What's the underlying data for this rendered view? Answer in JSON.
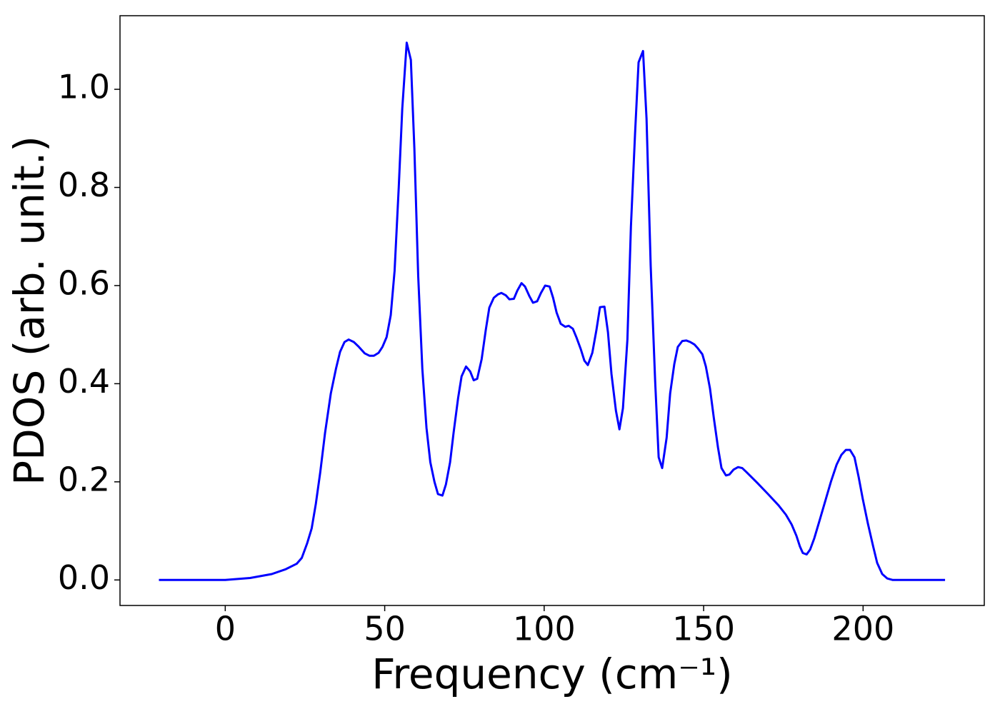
{
  "chart_data": {
    "type": "line",
    "xlabel": "Frequency (cm⁻¹)",
    "ylabel": "PDOS (arb. unit.)",
    "x": [
      -20.8,
      0,
      7.8,
      14.6,
      19.0,
      22.4,
      24.0,
      25.7,
      27.1,
      28.4,
      29.8,
      31.3,
      33.1,
      34.7,
      36.0,
      37.4,
      38.7,
      40.3,
      41.9,
      43.7,
      45.2,
      46.6,
      48.1,
      49.3,
      50.6,
      51.9,
      53.1,
      54.4,
      55.5,
      56.9,
      58.2,
      59.3,
      60.5,
      61.8,
      63.1,
      64.3,
      65.6,
      66.7,
      68.1,
      69.2,
      70.5,
      71.6,
      73.0,
      74.1,
      75.5,
      76.8,
      77.9,
      79.0,
      80.4,
      81.7,
      82.8,
      84.2,
      85.5,
      86.6,
      88.0,
      89.1,
      90.5,
      91.6,
      92.9,
      94.0,
      95.4,
      96.5,
      97.8,
      99.0,
      100.3,
      101.7,
      102.8,
      103.9,
      105.2,
      106.6,
      107.7,
      109.0,
      110.2,
      111.5,
      112.6,
      113.7,
      115.1,
      116.4,
      117.5,
      118.9,
      120.0,
      121.1,
      122.5,
      123.6,
      124.7,
      126.1,
      127.2,
      128.5,
      129.6,
      131.0,
      132.1,
      133.4,
      134.8,
      135.9,
      137.0,
      138.4,
      139.5,
      140.8,
      141.9,
      143.3,
      144.6,
      145.8,
      147.1,
      148.2,
      149.6,
      150.7,
      152.0,
      153.2,
      154.5,
      155.6,
      157.0,
      158.1,
      159.4,
      160.8,
      162.1,
      163.4,
      166.8,
      170.2,
      173.5,
      175.8,
      177.6,
      179.1,
      180.2,
      181.1,
      182.3,
      183.4,
      184.7,
      186.3,
      188.1,
      189.9,
      191.7,
      193.2,
      194.6,
      195.9,
      197.3,
      198.6,
      199.9,
      201.5,
      203.1,
      204.4,
      206.0,
      207.6,
      209.3,
      225.7
    ],
    "series": [
      {
        "color": "#0000ff",
        "values": [
          0,
          0,
          0.004,
          0.012,
          0.022,
          0.033,
          0.045,
          0.075,
          0.105,
          0.155,
          0.22,
          0.3,
          0.38,
          0.43,
          0.465,
          0.485,
          0.49,
          0.485,
          0.475,
          0.462,
          0.457,
          0.457,
          0.463,
          0.475,
          0.495,
          0.54,
          0.63,
          0.8,
          0.96,
          1.095,
          1.06,
          0.88,
          0.62,
          0.43,
          0.31,
          0.24,
          0.2,
          0.175,
          0.172,
          0.195,
          0.24,
          0.3,
          0.37,
          0.415,
          0.435,
          0.425,
          0.407,
          0.41,
          0.45,
          0.51,
          0.555,
          0.575,
          0.582,
          0.585,
          0.58,
          0.572,
          0.573,
          0.59,
          0.605,
          0.598,
          0.578,
          0.565,
          0.568,
          0.585,
          0.6,
          0.598,
          0.575,
          0.545,
          0.522,
          0.516,
          0.518,
          0.512,
          0.493,
          0.47,
          0.447,
          0.438,
          0.463,
          0.51,
          0.556,
          0.557,
          0.505,
          0.42,
          0.345,
          0.307,
          0.35,
          0.49,
          0.72,
          0.91,
          1.055,
          1.078,
          0.94,
          0.64,
          0.405,
          0.25,
          0.228,
          0.29,
          0.38,
          0.44,
          0.475,
          0.487,
          0.488,
          0.485,
          0.48,
          0.472,
          0.46,
          0.435,
          0.39,
          0.33,
          0.27,
          0.228,
          0.213,
          0.215,
          0.225,
          0.23,
          0.228,
          0.22,
          0.198,
          0.175,
          0.152,
          0.133,
          0.113,
          0.09,
          0.068,
          0.055,
          0.052,
          0.062,
          0.085,
          0.12,
          0.16,
          0.2,
          0.235,
          0.255,
          0.265,
          0.265,
          0.25,
          0.21,
          0.165,
          0.115,
          0.07,
          0.035,
          0.012,
          0.003,
          0,
          0
        ]
      }
    ],
    "xlim": [
      -33,
      238
    ],
    "ylim": [
      -0.052,
      1.15
    ],
    "xticks": [
      0,
      50,
      100,
      150,
      200
    ],
    "yticks": [
      {
        "value": 0,
        "label": "0.0"
      },
      0.2,
      0.4,
      0.6,
      0.8,
      {
        "value": 1,
        "label": "1.0"
      }
    ],
    "grid": false
  }
}
